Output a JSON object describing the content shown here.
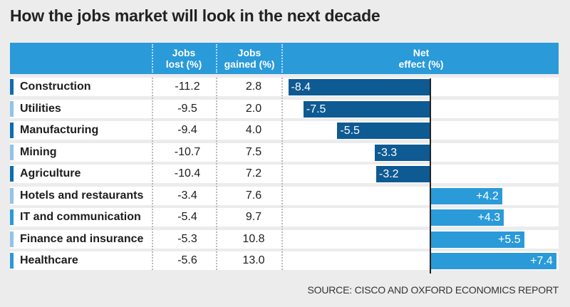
{
  "title": "How the jobs market will look in the next decade",
  "source": "SOURCE: CISCO AND OXFORD ECONOMICS REPORT",
  "colors": {
    "header": "#2a9ad9",
    "negative_bar": "#0e5a93",
    "positive_bar": "#2a9ad9",
    "marker_negative": "#0e6db0",
    "marker_light": "#92c4e8",
    "marker_positive": "#2a9ad9"
  },
  "chart_data": {
    "type": "table",
    "title": "How the jobs market will look in the next decade",
    "columns": [
      "",
      "Jobs lost (%)",
      "Jobs gained (%)",
      "Net effect (%)"
    ],
    "header": {
      "lost_line1": "Jobs",
      "lost_line2": "lost (%)",
      "gained_line1": "Jobs",
      "gained_line2": "gained (%)",
      "net_line1": "Net",
      "net_line2": "effect (%)"
    },
    "net_range": [
      -10,
      10
    ],
    "rows": [
      {
        "sector": "Construction",
        "lost": "-11.2",
        "gained": "2.8",
        "net": -8.4,
        "net_label": "-8.4",
        "marker": "#0e6db0"
      },
      {
        "sector": "Utilities",
        "lost": "-9.5",
        "gained": "2.0",
        "net": -7.5,
        "net_label": "-7.5",
        "marker": "#92c4e8"
      },
      {
        "sector": "Manufacturing",
        "lost": "-9.4",
        "gained": "4.0",
        "net": -5.5,
        "net_label": "-5.5",
        "marker": "#0e6db0"
      },
      {
        "sector": "Mining",
        "lost": "-10.7",
        "gained": "7.5",
        "net": -3.3,
        "net_label": "-3.3",
        "marker": "#92c4e8"
      },
      {
        "sector": "Agriculture",
        "lost": "-10.4",
        "gained": "7.2",
        "net": -3.2,
        "net_label": "-3.2",
        "marker": "#0e6db0"
      },
      {
        "sector": "Hotels and restaurants",
        "lost": "-3.4",
        "gained": "7.6",
        "net": 4.2,
        "net_label": "+4.2",
        "marker": "#92c4e8"
      },
      {
        "sector": "IT and communication",
        "lost": "-5.4",
        "gained": "9.7",
        "net": 4.3,
        "net_label": "+4.3",
        "marker": "#2a9ad9"
      },
      {
        "sector": "Finance and insurance",
        "lost": "-5.3",
        "gained": "10.8",
        "net": 5.5,
        "net_label": "+5.5",
        "marker": "#92c4e8"
      },
      {
        "sector": "Healthcare",
        "lost": "-5.6",
        "gained": "13.0",
        "net": 7.4,
        "net_label": "+7.4",
        "marker": "#2a9ad9"
      }
    ]
  }
}
